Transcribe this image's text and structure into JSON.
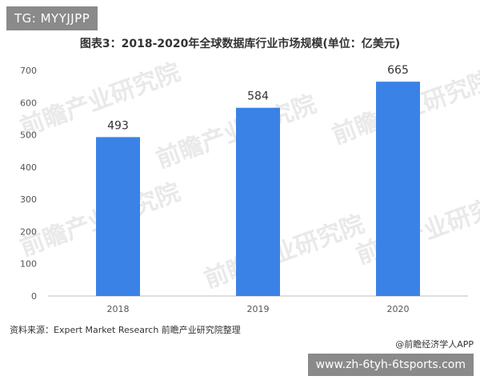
{
  "tag_label": "TG: MYYJJPP",
  "source_note": "资料来源：Expert Market Research 前瞻产业研究院整理",
  "credit": "@前瞻经济学人APP",
  "url_banner": "www.zh-6tyh-6tsports.com",
  "colors": {
    "bar": "#3b82e6",
    "axis": "#bfbfbf",
    "grid": "#d9d9d9"
  },
  "chart_data": {
    "type": "bar",
    "title": "图表3：2018-2020年全球数据库行业市场规模(单位：亿美元)",
    "categories": [
      "2018",
      "2019",
      "2020"
    ],
    "values": [
      493,
      584,
      665
    ],
    "data_labels": [
      "493",
      "584",
      "665"
    ],
    "ylim": [
      0,
      700
    ],
    "yticks": [
      0,
      100,
      200,
      300,
      400,
      500,
      600,
      700
    ],
    "grid": false,
    "legend": "none",
    "xlabel": "",
    "ylabel": ""
  }
}
